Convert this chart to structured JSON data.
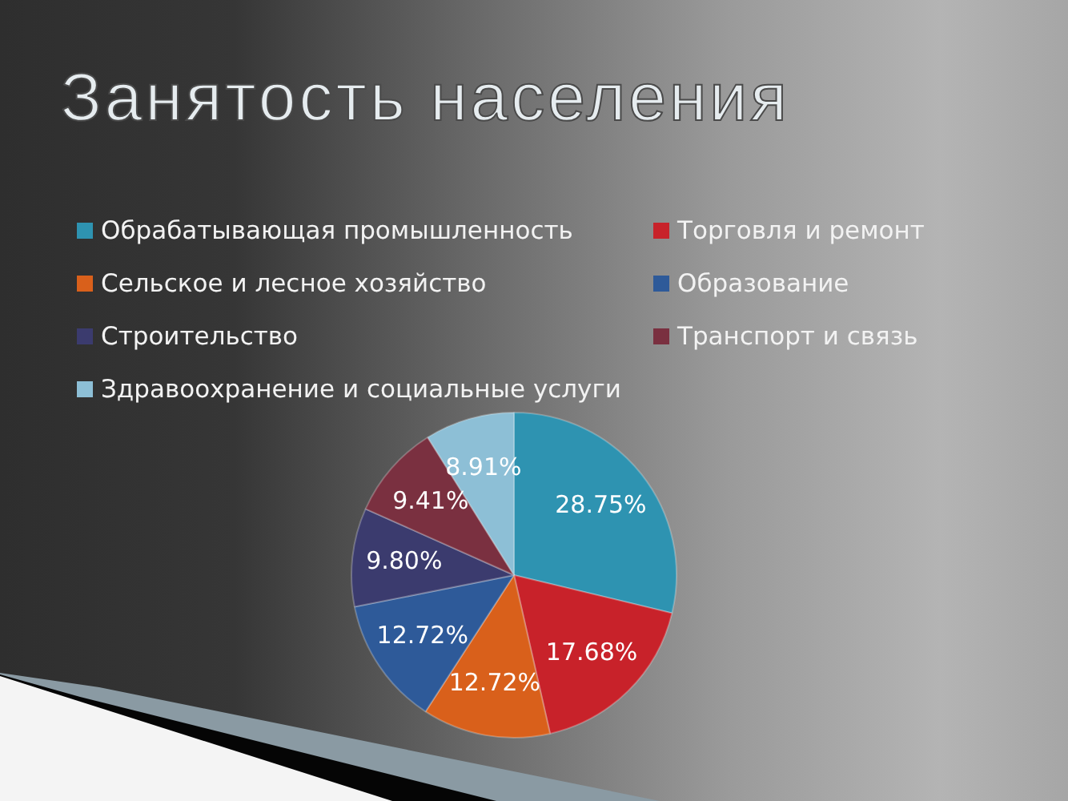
{
  "chart_data": {
    "type": "pie",
    "title": "Занятость населения",
    "categories": [
      "Обрабатывающая промышленность",
      "Торговля и ремонт",
      "Сельское и лесное хозяйство",
      "Образование",
      "Строительство",
      "Транспорт и связь",
      "Здравоохранение и социальные услуги"
    ],
    "values": [
      28.75,
      17.68,
      12.72,
      12.72,
      9.8,
      9.41,
      8.91
    ],
    "value_labels": [
      "28.75%",
      "17.68%",
      "12.72%",
      "12.72%",
      "9.80%",
      "9.41%",
      "8.91%"
    ],
    "colors": [
      "#2e93b1",
      "#c8222a",
      "#d9601b",
      "#2e5a99",
      "#3b3b6e",
      "#7a3040",
      "#8dbfd6"
    ],
    "legend": "top"
  }
}
